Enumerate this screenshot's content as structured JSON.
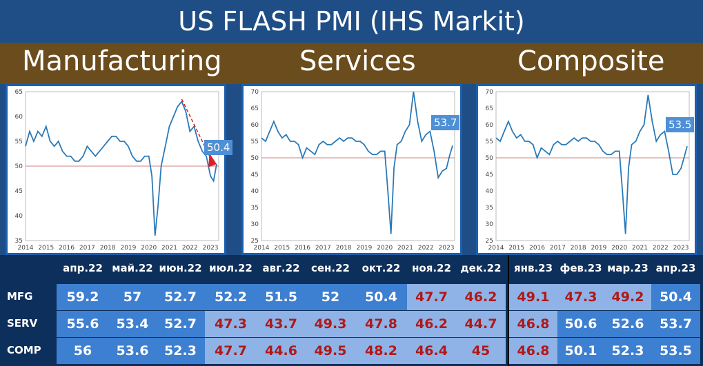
{
  "title": "US FLASH PMI (IHS Markit)",
  "sections": [
    "Manufacturing",
    "Services",
    "Composite"
  ],
  "chart_data": [
    {
      "type": "line",
      "name": "Manufacturing",
      "ylim": [
        35,
        65
      ],
      "yticks": [
        35,
        40,
        45,
        50,
        55,
        60,
        65
      ],
      "xticks": [
        "2014",
        "2015",
        "2016",
        "2017",
        "2018",
        "2019",
        "2020",
        "2021",
        "2022",
        "2023"
      ],
      "reference_line": 50,
      "callout": "50.4",
      "x": [
        2014.0,
        2014.2,
        2014.4,
        2014.6,
        2014.8,
        2015.0,
        2015.2,
        2015.4,
        2015.6,
        2015.8,
        2016.0,
        2016.2,
        2016.4,
        2016.6,
        2016.8,
        2017.0,
        2017.2,
        2017.4,
        2017.6,
        2017.8,
        2018.0,
        2018.2,
        2018.4,
        2018.6,
        2018.8,
        2019.0,
        2019.2,
        2019.4,
        2019.6,
        2019.8,
        2020.0,
        2020.15,
        2020.3,
        2020.45,
        2020.6,
        2020.8,
        2021.0,
        2021.2,
        2021.4,
        2021.6,
        2021.8,
        2022.0,
        2022.2,
        2022.4,
        2022.6,
        2022.8,
        2023.0,
        2023.15,
        2023.3
      ],
      "y": [
        54,
        57,
        55,
        57,
        56,
        58,
        55,
        54,
        55,
        53,
        52,
        52,
        51,
        51,
        52,
        54,
        53,
        52,
        53,
        54,
        55,
        56,
        56,
        55,
        55,
        54,
        52,
        51,
        51,
        52,
        52,
        48,
        36,
        42,
        50,
        54,
        58,
        60,
        62,
        63,
        61,
        57,
        58,
        55,
        53,
        52,
        48,
        47,
        50.4
      ]
    },
    {
      "type": "line",
      "name": "Services",
      "ylim": [
        25,
        70
      ],
      "yticks": [
        25,
        30,
        35,
        40,
        45,
        50,
        55,
        60,
        65,
        70
      ],
      "xticks": [
        "2014",
        "2015",
        "2016",
        "2017",
        "2018",
        "2019",
        "2020",
        "2021",
        "2022",
        "2023"
      ],
      "reference_line": 50,
      "callout": "53.7",
      "x": [
        2014.0,
        2014.2,
        2014.4,
        2014.6,
        2014.8,
        2015.0,
        2015.2,
        2015.4,
        2015.6,
        2015.8,
        2016.0,
        2016.2,
        2016.4,
        2016.6,
        2016.8,
        2017.0,
        2017.2,
        2017.4,
        2017.6,
        2017.8,
        2018.0,
        2018.2,
        2018.4,
        2018.6,
        2018.8,
        2019.0,
        2019.2,
        2019.4,
        2019.6,
        2019.8,
        2020.0,
        2020.15,
        2020.3,
        2020.45,
        2020.6,
        2020.8,
        2021.0,
        2021.2,
        2021.4,
        2021.6,
        2021.8,
        2022.0,
        2022.2,
        2022.4,
        2022.6,
        2022.8,
        2023.0,
        2023.15,
        2023.3
      ],
      "y": [
        56,
        55,
        58,
        61,
        58,
        56,
        57,
        55,
        55,
        54,
        50,
        53,
        52,
        51,
        54,
        55,
        54,
        54,
        55,
        56,
        55,
        56,
        56,
        55,
        55,
        54,
        52,
        51,
        51,
        52,
        52,
        40,
        27,
        47,
        54,
        55,
        58,
        60,
        70,
        61,
        55,
        57,
        58,
        52,
        44,
        46,
        46.8,
        50.6,
        53.7
      ]
    },
    {
      "type": "line",
      "name": "Composite",
      "ylim": [
        25,
        70
      ],
      "yticks": [
        25,
        30,
        35,
        40,
        45,
        50,
        55,
        60,
        65,
        70
      ],
      "xticks": [
        "2014",
        "2015",
        "2016",
        "2017",
        "2018",
        "2019",
        "2020",
        "2021",
        "2022",
        "2023"
      ],
      "reference_line": 50,
      "callout": "53.5",
      "x": [
        2014.0,
        2014.2,
        2014.4,
        2014.6,
        2014.8,
        2015.0,
        2015.2,
        2015.4,
        2015.6,
        2015.8,
        2016.0,
        2016.2,
        2016.4,
        2016.6,
        2016.8,
        2017.0,
        2017.2,
        2017.4,
        2017.6,
        2017.8,
        2018.0,
        2018.2,
        2018.4,
        2018.6,
        2018.8,
        2019.0,
        2019.2,
        2019.4,
        2019.6,
        2019.8,
        2020.0,
        2020.15,
        2020.3,
        2020.45,
        2020.6,
        2020.8,
        2021.0,
        2021.2,
        2021.4,
        2021.6,
        2021.8,
        2022.0,
        2022.2,
        2022.4,
        2022.6,
        2022.8,
        2023.0,
        2023.15,
        2023.3
      ],
      "y": [
        56,
        55,
        58,
        61,
        58,
        56,
        57,
        55,
        55,
        54,
        50,
        53,
        52,
        51,
        54,
        55,
        54,
        54,
        55,
        56,
        55,
        56,
        56,
        55,
        55,
        54,
        52,
        51,
        51,
        52,
        52,
        40,
        27,
        47,
        54,
        55,
        58,
        60,
        69,
        61,
        55,
        57,
        58,
        52,
        45,
        45,
        46.8,
        50.1,
        53.5
      ]
    }
  ],
  "table": {
    "months": [
      "апр.22",
      "май.22",
      "июн.22",
      "июл.22",
      "авг.22",
      "сен.22",
      "окт.22",
      "ноя.22",
      "дек.22",
      "янв.23",
      "фев.23",
      "мар.23",
      "апр.23"
    ],
    "rows": [
      {
        "label": "MFG",
        "values": [
          "59.2",
          "57",
          "52.7",
          "52.2",
          "51.5",
          "52",
          "50.4",
          "47.7",
          "46.2",
          "49.1",
          "47.3",
          "49.2",
          "50.4"
        ]
      },
      {
        "label": "SERV",
        "values": [
          "55.6",
          "53.4",
          "52.7",
          "47.3",
          "43.7",
          "49.3",
          "47.8",
          "46.2",
          "44.7",
          "46.8",
          "50.6",
          "52.6",
          "53.7"
        ]
      },
      {
        "label": "COMP",
        "values": [
          "56",
          "53.6",
          "52.3",
          "47.7",
          "44.6",
          "49.5",
          "48.2",
          "46.4",
          "45",
          "46.8",
          "50.1",
          "52.3",
          "53.5"
        ]
      }
    ]
  },
  "colors": {
    "line": "#2a7ab8",
    "reference": "#d08080",
    "below50_text": "#b01818",
    "above50_text": "#ffffff",
    "cell_dark": "#3d7fd0",
    "cell_light": "#8fb3e6"
  }
}
